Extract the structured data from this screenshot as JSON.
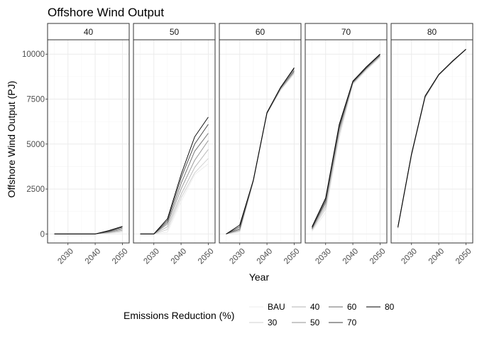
{
  "chart_data": {
    "type": "line",
    "title": "Offshore Wind Output",
    "xlabel": "Year",
    "ylabel": "Offshore Wind Output (PJ)",
    "ylim": [
      -500,
      10800
    ],
    "xlim": [
      2022.5,
      2052.5
    ],
    "y_ticks": [
      0,
      2500,
      5000,
      7500,
      10000
    ],
    "y_tick_labels": [
      "0",
      "2500",
      "5000",
      "7500",
      "10000"
    ],
    "x_ticks": [
      2030,
      2040,
      2050
    ],
    "x_tick_labels": [
      "2030",
      "2040",
      "2050"
    ],
    "grid": true,
    "facet_title": "",
    "facets": [
      {
        "label": "40",
        "series": [
          {
            "name": "BAU",
            "x": [
              2025,
              2030,
              2035,
              2040,
              2045,
              2050
            ],
            "values": [
              0,
              0,
              0,
              0,
              30,
              90
            ]
          },
          {
            "name": "30",
            "x": [
              2025,
              2030,
              2035,
              2040,
              2045,
              2050
            ],
            "values": [
              0,
              0,
              0,
              0,
              50,
              150
            ]
          },
          {
            "name": "40",
            "x": [
              2025,
              2030,
              2035,
              2040,
              2045,
              2050
            ],
            "values": [
              0,
              0,
              0,
              0,
              80,
              200
            ]
          },
          {
            "name": "50",
            "x": [
              2025,
              2030,
              2035,
              2040,
              2045,
              2050
            ],
            "values": [
              0,
              0,
              0,
              0,
              100,
              260
            ]
          },
          {
            "name": "60",
            "x": [
              2025,
              2030,
              2035,
              2040,
              2045,
              2050
            ],
            "values": [
              0,
              0,
              0,
              0,
              130,
              320
            ]
          },
          {
            "name": "70",
            "x": [
              2025,
              2030,
              2035,
              2040,
              2045,
              2050
            ],
            "values": [
              0,
              0,
              0,
              0,
              160,
              380
            ]
          },
          {
            "name": "80",
            "x": [
              2025,
              2030,
              2035,
              2040,
              2045,
              2050
            ],
            "values": [
              0,
              0,
              0,
              0,
              190,
              420
            ]
          }
        ]
      },
      {
        "label": "50",
        "series": [
          {
            "name": "BAU",
            "x": [
              2025,
              2030,
              2035,
              2040,
              2045,
              2050
            ],
            "values": [
              0,
              0,
              100,
              1800,
              3300,
              3900
            ]
          },
          {
            "name": "30",
            "x": [
              2025,
              2030,
              2035,
              2040,
              2045,
              2050
            ],
            "values": [
              0,
              0,
              250,
              2000,
              3400,
              4200
            ]
          },
          {
            "name": "40",
            "x": [
              2025,
              2030,
              2035,
              2040,
              2045,
              2050
            ],
            "values": [
              0,
              0,
              400,
              2200,
              3700,
              4700
            ]
          },
          {
            "name": "50",
            "x": [
              2025,
              2030,
              2035,
              2040,
              2045,
              2050
            ],
            "values": [
              0,
              0,
              550,
              2500,
              4100,
              5200
            ]
          },
          {
            "name": "60",
            "x": [
              2025,
              2030,
              2035,
              2040,
              2045,
              2050
            ],
            "values": [
              0,
              0,
              650,
              2800,
              4600,
              5600
            ]
          },
          {
            "name": "70",
            "x": [
              2025,
              2030,
              2035,
              2040,
              2045,
              2050
            ],
            "values": [
              0,
              0,
              750,
              3100,
              5000,
              6100
            ]
          },
          {
            "name": "80",
            "x": [
              2025,
              2030,
              2035,
              2040,
              2045,
              2050
            ],
            "values": [
              0,
              0,
              850,
              3300,
              5400,
              6500
            ]
          }
        ]
      },
      {
        "label": "60",
        "series": [
          {
            "name": "BAU",
            "x": [
              2025,
              2030,
              2035,
              2040,
              2045,
              2050
            ],
            "values": [
              0,
              100,
              2900,
              6700,
              8000,
              8900
            ]
          },
          {
            "name": "30",
            "x": [
              2025,
              2030,
              2035,
              2040,
              2045,
              2050
            ],
            "values": [
              0,
              150,
              2900,
              6700,
              8000,
              8950
            ]
          },
          {
            "name": "40",
            "x": [
              2025,
              2030,
              2035,
              2040,
              2045,
              2050
            ],
            "values": [
              0,
              200,
              2950,
              6700,
              8050,
              9000
            ]
          },
          {
            "name": "50",
            "x": [
              2025,
              2030,
              2035,
              2040,
              2045,
              2050
            ],
            "values": [
              0,
              250,
              2950,
              6700,
              8100,
              9050
            ]
          },
          {
            "name": "60",
            "x": [
              2025,
              2030,
              2035,
              2040,
              2045,
              2050
            ],
            "values": [
              0,
              300,
              3000,
              6700,
              8100,
              9100
            ]
          },
          {
            "name": "70",
            "x": [
              2025,
              2030,
              2035,
              2040,
              2045,
              2050
            ],
            "values": [
              0,
              400,
              3000,
              6750,
              8150,
              9200
            ]
          },
          {
            "name": "80",
            "x": [
              2025,
              2030,
              2035,
              2040,
              2045,
              2050
            ],
            "values": [
              0,
              500,
              3000,
              6750,
              8150,
              9250
            ]
          }
        ]
      },
      {
        "label": "70",
        "series": [
          {
            "name": "BAU",
            "x": [
              2025,
              2030,
              2035,
              2040,
              2045,
              2050
            ],
            "values": [
              150,
              1200,
              5300,
              8300,
              9100,
              9800
            ]
          },
          {
            "name": "30",
            "x": [
              2025,
              2030,
              2035,
              2040,
              2045,
              2050
            ],
            "values": [
              200,
              1400,
              5500,
              8350,
              9150,
              9850
            ]
          },
          {
            "name": "40",
            "x": [
              2025,
              2030,
              2035,
              2040,
              2045,
              2050
            ],
            "values": [
              250,
              1550,
              5650,
              8400,
              9200,
              9900
            ]
          },
          {
            "name": "50",
            "x": [
              2025,
              2030,
              2035,
              2040,
              2045,
              2050
            ],
            "values": [
              300,
              1700,
              5800,
              8400,
              9200,
              9900
            ]
          },
          {
            "name": "60",
            "x": [
              2025,
              2030,
              2035,
              2040,
              2045,
              2050
            ],
            "values": [
              300,
              1800,
              5900,
              8450,
              9250,
              9950
            ]
          },
          {
            "name": "70",
            "x": [
              2025,
              2030,
              2035,
              2040,
              2045,
              2050
            ],
            "values": [
              350,
              1900,
              6000,
              8450,
              9250,
              10000
            ]
          },
          {
            "name": "80",
            "x": [
              2025,
              2030,
              2035,
              2040,
              2045,
              2050
            ],
            "values": [
              400,
              2000,
              6100,
              8500,
              9300,
              10000
            ]
          }
        ]
      },
      {
        "label": "80",
        "series": [
          {
            "name": "BAU",
            "x": [
              2025,
              2030,
              2035,
              2040,
              2045,
              2050
            ],
            "values": [
              300,
              4300,
              7550,
              8800,
              9550,
              10250
            ]
          },
          {
            "name": "30",
            "x": [
              2025,
              2030,
              2035,
              2040,
              2045,
              2050
            ],
            "values": [
              320,
              4350,
              7580,
              8820,
              9560,
              10250
            ]
          },
          {
            "name": "40",
            "x": [
              2025,
              2030,
              2035,
              2040,
              2045,
              2050
            ],
            "values": [
              340,
              4380,
              7600,
              8830,
              9570,
              10260
            ]
          },
          {
            "name": "50",
            "x": [
              2025,
              2030,
              2035,
              2040,
              2045,
              2050
            ],
            "values": [
              350,
              4400,
              7620,
              8840,
              9580,
              10260
            ]
          },
          {
            "name": "60",
            "x": [
              2025,
              2030,
              2035,
              2040,
              2045,
              2050
            ],
            "values": [
              360,
              4420,
              7640,
              8850,
              9590,
              10270
            ]
          },
          {
            "name": "70",
            "x": [
              2025,
              2030,
              2035,
              2040,
              2045,
              2050
            ],
            "values": [
              380,
              4440,
              7660,
              8860,
              9600,
              10270
            ]
          },
          {
            "name": "80",
            "x": [
              2025,
              2030,
              2035,
              2040,
              2045,
              2050
            ],
            "values": [
              400,
              4460,
              7680,
              8870,
              9610,
              10280
            ]
          }
        ]
      }
    ],
    "legend": {
      "title": "Emissions Reduction (%)",
      "position": "bottom",
      "items": [
        {
          "label": "BAU",
          "color": "#ececec"
        },
        {
          "label": "30",
          "color": "#d0d0d0"
        },
        {
          "label": "40",
          "color": "#b3b3b3"
        },
        {
          "label": "50",
          "color": "#919191"
        },
        {
          "label": "60",
          "color": "#6a6a6a"
        },
        {
          "label": "70",
          "color": "#3d3d3d"
        },
        {
          "label": "80",
          "color": "#000000"
        }
      ]
    },
    "colors": {
      "panel_border": "#333333",
      "grid_major": "#ebebeb",
      "grid_minor": "#f5f5f5",
      "strip_fill": "#ffffff"
    }
  }
}
